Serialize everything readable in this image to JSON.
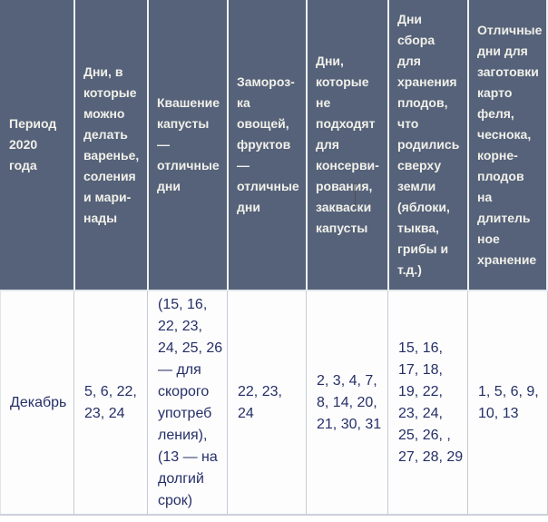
{
  "colors": {
    "header_bg": "#556279",
    "header_text": "#f1f0ea",
    "data_text": "#252f66",
    "data_grid_border": "#c6cbd3",
    "header_divider": "#eef0f2"
  },
  "table": {
    "columns": [
      {
        "id": "period",
        "header": "Период\n2020\nгода",
        "value": "Декабрь"
      },
      {
        "id": "jam-pickles-marinades-days",
        "header": "Дни, в\nкоторые\nможно\nделать\nваренье,\nсоления\nи мари-\nнады",
        "value": "5, 6, 22,\n23, 24"
      },
      {
        "id": "sauerkraut-days",
        "header": "Квашение\nкапусты\n—\nотличные\nдни",
        "value": "(15, 16,\n22, 23,\n24, 25, 26\n— для\nскорого\nупотреб\nления),\n(13 — на\nдолгий\nсрок)"
      },
      {
        "id": "freezing-days",
        "header": "Замороз-\nка\nовощей,\nфруктов\n—\nотличные\nдни",
        "value": "22, 23,\n24"
      },
      {
        "id": "unsuitable-days",
        "header": "Дни,\nкоторые\nне\nподходят\nдля\nконсерви-\nрования,\nзакваски\nкапусты",
        "value": "2, 3, 4, 7,\n8, 14, 20,\n21, 30, 31"
      },
      {
        "id": "harvest-above-ground-days",
        "header": "Дни\nсбора\nдля\nхранения\nплодов,\nчто\nродились\nсверху\nземли\n(яблоки,\nтыква,\nгрибы и\nт.д.)",
        "value": "15, 16,\n17, 18,\n19, 22,\n23, 24,\n25, 26, ,\n27, 28, 29"
      },
      {
        "id": "root-crops-storage-days",
        "header": "Отличные\nдни для\nзаготовки\nкарто\nфеля,\nчеснока,\nкорне-\nплодов\nна\nдлитель\nное\nхранение",
        "value": "1, 5, 6, 9,\n10, 13"
      }
    ]
  }
}
